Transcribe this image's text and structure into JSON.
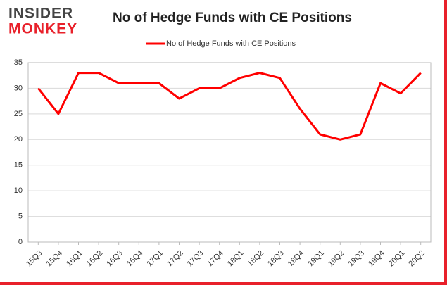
{
  "logo": [
    "INSIDER",
    "MONKEY"
  ],
  "chart_data": {
    "type": "line",
    "title": "No of Hedge Funds with CE Positions",
    "categories": [
      "15Q3",
      "15Q4",
      "16Q1",
      "16Q2",
      "16Q3",
      "16Q4",
      "17Q1",
      "17Q2",
      "17Q3",
      "17Q4",
      "18Q1",
      "18Q2",
      "18Q3",
      "18Q4",
      "19Q1",
      "19Q2",
      "19Q3",
      "19Q4",
      "20Q1",
      "20Q2"
    ],
    "series": [
      {
        "name": "No of Hedge Funds with CE Positions",
        "color": "#ff0000",
        "values": [
          30,
          25,
          33,
          33,
          31,
          31,
          31,
          28,
          30,
          30,
          32,
          33,
          32,
          26,
          21,
          20,
          21,
          31,
          29,
          33
        ]
      }
    ],
    "ylim": [
      0,
      35
    ],
    "yticks": [
      0,
      5,
      10,
      15,
      20,
      25,
      30,
      35
    ],
    "grid": true,
    "legend": "top"
  }
}
